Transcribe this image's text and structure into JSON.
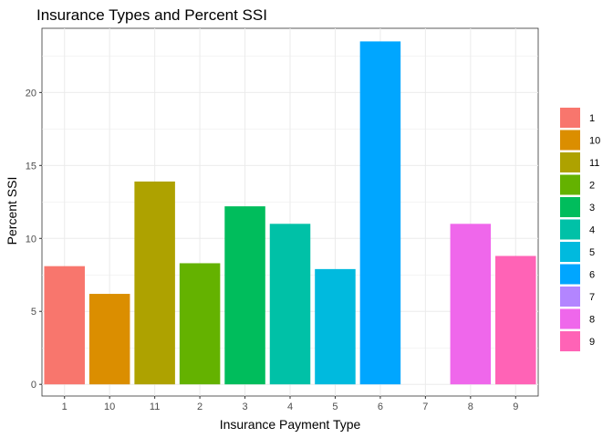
{
  "chart_data": {
    "type": "bar",
    "title": "Insurance Types and Percent SSI",
    "xlabel": "Insurance Payment Type",
    "ylabel": "Percent SSI",
    "categories": [
      "1",
      "10",
      "11",
      "2",
      "3",
      "4",
      "5",
      "6",
      "7",
      "8",
      "9"
    ],
    "values": [
      8.1,
      6.2,
      13.9,
      8.3,
      12.2,
      11.0,
      7.9,
      23.5,
      0,
      11.0,
      8.8
    ],
    "colors": [
      "#F8766D",
      "#DB8E00",
      "#AEA200",
      "#64B200",
      "#00BD5C",
      "#00C1A7",
      "#00BADE",
      "#00A6FF",
      "#B385FF",
      "#EF67EB",
      "#FF63B6"
    ],
    "ylim": [
      -0.8,
      24.4
    ],
    "yticks": [
      0,
      5,
      10,
      15,
      20
    ],
    "legend": {
      "position": "right",
      "entries": [
        "1",
        "10",
        "11",
        "2",
        "3",
        "4",
        "5",
        "6",
        "7",
        "8",
        "9"
      ]
    },
    "grid": true
  }
}
